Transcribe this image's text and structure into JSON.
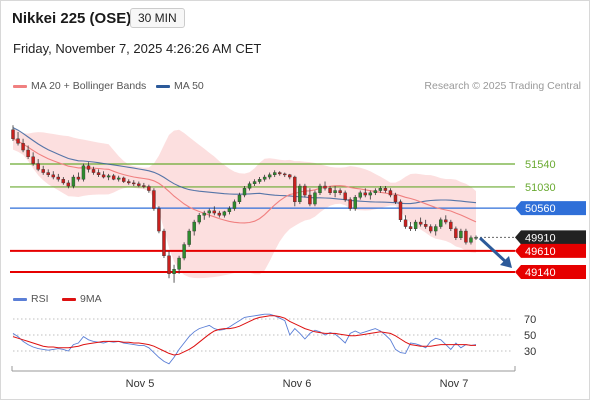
{
  "header": {
    "title": "Nikkei 225 (OSE)",
    "timeframe": "30 MIN",
    "datetime": "Friday, November 7, 2025 4:26:26 AM CET"
  },
  "legend": {
    "ma20": "MA 20 + Bollinger Bands",
    "ma50": "MA 50",
    "ma20_color": "#f08080",
    "ma50_color": "#2c5a9a",
    "rsi": "RSI",
    "ma9": "9MA",
    "rsi_color": "#5b7fd6",
    "ma9_color": "#dd1111"
  },
  "copyright": "Research © 2025 Trading Central",
  "chart_data": [
    {
      "type": "candlestick",
      "x_labels": [
        "Nov 5",
        "Nov 6",
        "Nov 7"
      ],
      "levels": [
        {
          "value": 51540,
          "label": "51540",
          "kind": "resistance",
          "color": "#6aaa32"
        },
        {
          "value": 51030,
          "label": "51030",
          "kind": "resistance",
          "color": "#6aaa32"
        },
        {
          "value": 50560,
          "label": "50560",
          "kind": "pivot",
          "color": "#2f6fd8"
        },
        {
          "value": 49910,
          "label": "49910",
          "kind": "last-price",
          "color": "#222222"
        },
        {
          "value": 49610,
          "label": "49610",
          "kind": "support",
          "color": "#e60000"
        },
        {
          "value": 49140,
          "label": "49140",
          "kind": "support",
          "color": "#e60000"
        }
      ],
      "ohlc": [
        [
          52300,
          52400,
          52050,
          52100
        ],
        [
          52100,
          52250,
          51950,
          52000
        ],
        [
          52000,
          52100,
          51800,
          51850
        ],
        [
          51850,
          51950,
          51650,
          51700
        ],
        [
          51700,
          51800,
          51500,
          51550
        ],
        [
          51550,
          51650,
          51380,
          51420
        ],
        [
          51420,
          51500,
          51300,
          51350
        ],
        [
          51350,
          51420,
          51250,
          51300
        ],
        [
          51300,
          51380,
          51200,
          51250
        ],
        [
          51250,
          51320,
          51150,
          51200
        ],
        [
          51200,
          51250,
          51080,
          51120
        ],
        [
          51120,
          51180,
          51000,
          51050
        ],
        [
          51050,
          51300,
          51000,
          51250
        ],
        [
          51250,
          51350,
          51150,
          51200
        ],
        [
          51200,
          51550,
          51150,
          51500
        ],
        [
          51500,
          51580,
          51350,
          51420
        ],
        [
          51420,
          51480,
          51300,
          51350
        ],
        [
          51350,
          51420,
          51250,
          51300
        ],
        [
          51300,
          51380,
          51220,
          51250
        ],
        [
          51250,
          51320,
          51180,
          51280
        ],
        [
          51280,
          51320,
          51180,
          51200
        ],
        [
          51200,
          51280,
          51150,
          51230
        ],
        [
          51230,
          51260,
          51120,
          51150
        ],
        [
          51150,
          51200,
          51080,
          51120
        ],
        [
          51120,
          51180,
          51050,
          51100
        ],
        [
          51100,
          51150,
          51020,
          51060
        ],
        [
          51060,
          51120,
          51000,
          51040
        ],
        [
          51040,
          51080,
          50900,
          50950
        ],
        [
          50950,
          51000,
          50500,
          50550
        ],
        [
          50550,
          50600,
          50000,
          50050
        ],
        [
          50050,
          50100,
          49450,
          49500
        ],
        [
          49500,
          49600,
          49000,
          49100
        ],
        [
          49100,
          49300,
          48900,
          49200
        ],
        [
          49200,
          49500,
          49100,
          49450
        ],
        [
          49450,
          49800,
          49400,
          49750
        ],
        [
          49750,
          50100,
          49700,
          50050
        ],
        [
          50050,
          50300,
          49950,
          50250
        ],
        [
          50250,
          50450,
          50200,
          50400
        ],
        [
          50400,
          50500,
          50300,
          50450
        ],
        [
          50450,
          50550,
          50350,
          50500
        ],
        [
          50500,
          50600,
          50400,
          50450
        ],
        [
          50450,
          50500,
          50350,
          50400
        ],
        [
          50400,
          50500,
          50350,
          50480
        ],
        [
          50480,
          50600,
          50420,
          50550
        ],
        [
          50550,
          50750,
          50500,
          50700
        ],
        [
          50700,
          50900,
          50650,
          50850
        ],
        [
          50850,
          51050,
          50800,
          51000
        ],
        [
          51000,
          51150,
          50950,
          51100
        ],
        [
          51100,
          51200,
          51050,
          51150
        ],
        [
          51150,
          51250,
          51100,
          51200
        ],
        [
          51200,
          51300,
          51150,
          51250
        ],
        [
          51250,
          51350,
          51200,
          51300
        ],
        [
          51300,
          51400,
          51250,
          51350
        ],
        [
          51350,
          51380,
          51280,
          51320
        ],
        [
          51320,
          51350,
          51250,
          51300
        ],
        [
          51300,
          51320,
          51200,
          51250
        ],
        [
          51250,
          51280,
          50600,
          50700
        ],
        [
          50700,
          51100,
          50650,
          51050
        ],
        [
          51050,
          51100,
          50800,
          50850
        ],
        [
          50850,
          51000,
          50600,
          50650
        ],
        [
          50650,
          50950,
          50600,
          50900
        ],
        [
          50900,
          51100,
          50850,
          51050
        ],
        [
          51050,
          51150,
          50950,
          51000
        ],
        [
          51000,
          51050,
          50850,
          50900
        ],
        [
          50900,
          51050,
          50800,
          50950
        ],
        [
          50950,
          51000,
          50850,
          50900
        ],
        [
          50900,
          50950,
          50700,
          50750
        ],
        [
          50750,
          50800,
          50500,
          50550
        ],
        [
          50550,
          50850,
          50500,
          50800
        ],
        [
          50800,
          50950,
          50750,
          50900
        ],
        [
          50900,
          51000,
          50800,
          50850
        ],
        [
          50850,
          50950,
          50750,
          50900
        ],
        [
          50900,
          51000,
          50850,
          50950
        ],
        [
          50950,
          51050,
          50900,
          51000
        ],
        [
          51000,
          51050,
          50900,
          50950
        ],
        [
          50950,
          51000,
          50800,
          50850
        ],
        [
          50850,
          50900,
          50650,
          50700
        ],
        [
          50700,
          50750,
          50250,
          50300
        ],
        [
          50300,
          50400,
          50100,
          50150
        ],
        [
          50150,
          50250,
          50050,
          50100
        ],
        [
          50100,
          50300,
          50050,
          50250
        ],
        [
          50250,
          50350,
          50150,
          50200
        ],
        [
          50200,
          50300,
          50100,
          50150
        ],
        [
          50150,
          50200,
          50000,
          50050
        ],
        [
          50050,
          50200,
          49950,
          50150
        ],
        [
          50150,
          50350,
          50100,
          50300
        ],
        [
          50300,
          50400,
          50200,
          50250
        ],
        [
          50250,
          50300,
          50050,
          50100
        ],
        [
          50100,
          50150,
          49850,
          49900
        ],
        [
          49900,
          50100,
          49850,
          50050
        ],
        [
          50050,
          50100,
          49750,
          49800
        ],
        [
          49800,
          49950,
          49750,
          49900
        ],
        [
          49900,
          49950,
          49850,
          49910
        ]
      ]
    },
    {
      "type": "line",
      "name": "RSI",
      "y_ticks": [
        70,
        50,
        30
      ],
      "ylim": [
        18,
        82
      ],
      "rsi": [
        52,
        48,
        42,
        38,
        35,
        33,
        32,
        31,
        32,
        33,
        32,
        30,
        38,
        40,
        48,
        44,
        42,
        41,
        40,
        42,
        41,
        42,
        40,
        39,
        38,
        37,
        37,
        34,
        28,
        22,
        17,
        14,
        22,
        32,
        40,
        48,
        54,
        58,
        60,
        62,
        58,
        56,
        57,
        60,
        64,
        68,
        72,
        73,
        74,
        75,
        76,
        76,
        74,
        71,
        68,
        50,
        58,
        52,
        45,
        52,
        56,
        54,
        50,
        53,
        51,
        46,
        40,
        52,
        55,
        52,
        54,
        56,
        58,
        55,
        50,
        44,
        32,
        28,
        27,
        40,
        39,
        37,
        34,
        42,
        46,
        44,
        38,
        32,
        40,
        34,
        38,
        37,
        38
      ],
      "ma9": [
        48,
        46,
        44,
        42,
        40,
        38,
        36,
        35,
        35,
        34,
        34,
        34,
        35,
        36,
        38,
        39,
        40,
        41,
        42,
        42,
        42,
        42,
        41,
        41,
        40,
        40,
        39,
        38,
        36,
        33,
        30,
        27,
        25,
        26,
        29,
        32,
        36,
        41,
        46,
        51,
        55,
        57,
        58,
        58,
        59,
        61,
        64,
        67,
        70,
        72,
        73,
        74,
        74,
        73,
        71,
        67,
        64,
        61,
        58,
        56,
        54,
        53,
        52,
        52,
        52,
        51,
        50,
        49,
        49,
        50,
        51,
        52,
        53,
        54,
        53,
        52,
        49,
        45,
        41,
        38,
        37,
        36,
        36,
        36,
        37,
        38,
        38,
        38,
        38,
        38,
        38,
        37,
        37
      ]
    }
  ]
}
